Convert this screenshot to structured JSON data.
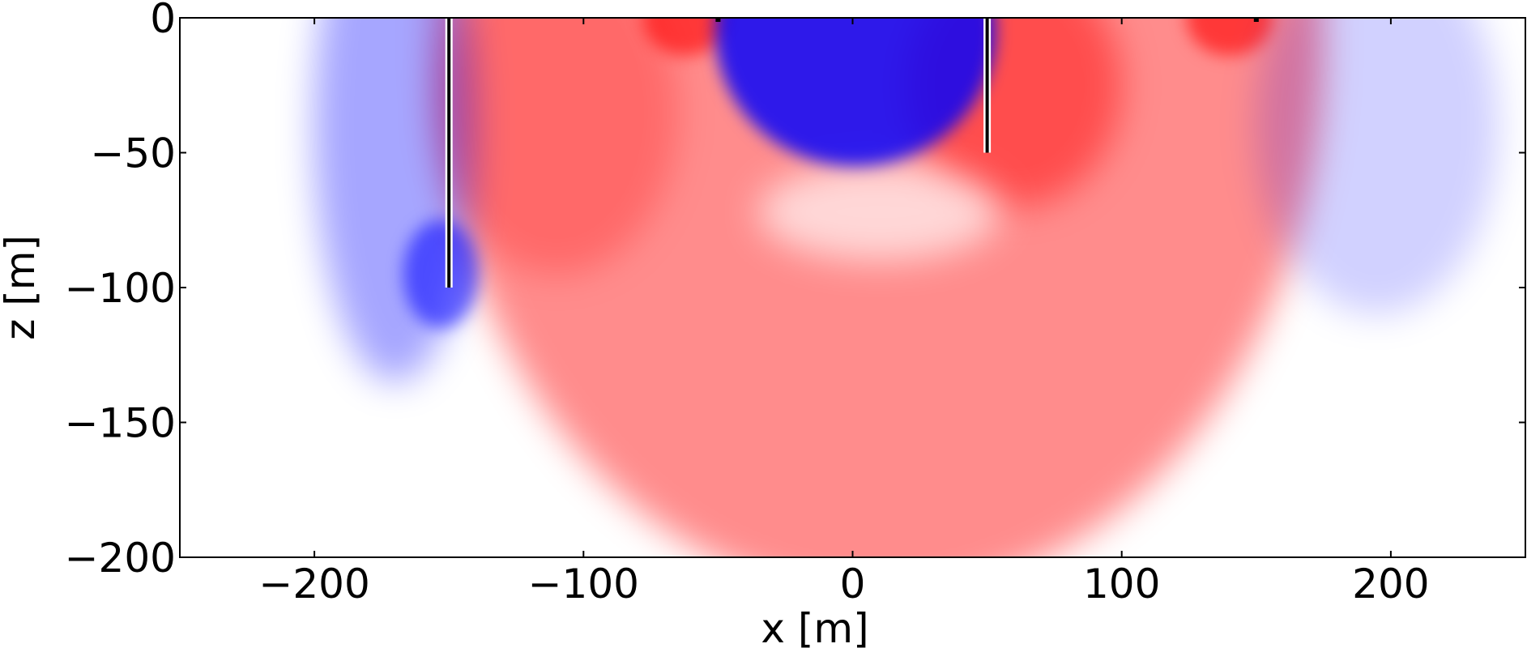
{
  "chart_data": {
    "type": "heatmap",
    "title": "",
    "xlabel": "x [m]",
    "ylabel": "z [m]",
    "xlim": [
      -250,
      250
    ],
    "ylim": [
      -200,
      0
    ],
    "x_ticks": [
      -200,
      -100,
      0,
      100,
      200
    ],
    "y_ticks": [
      0,
      -50,
      -100,
      -150,
      -200
    ],
    "x_tick_labels": [
      "−200",
      "−100",
      "0",
      "100",
      "200"
    ],
    "y_tick_labels": [
      "0",
      "−50",
      "−100",
      "−150",
      "−200"
    ],
    "grid": false,
    "colormap": {
      "negative": "#0000ff",
      "zero": "#ffffff",
      "positive": "#ff0000"
    },
    "electrodes": [
      {
        "x": -150,
        "z_top": 0,
        "z_bottom": -100
      },
      {
        "x": 50,
        "z_top": 0,
        "z_bottom": -50
      }
    ],
    "surface_markers": [
      {
        "x": -50,
        "z": 0
      },
      {
        "x": 150,
        "z": 0
      }
    ]
  }
}
